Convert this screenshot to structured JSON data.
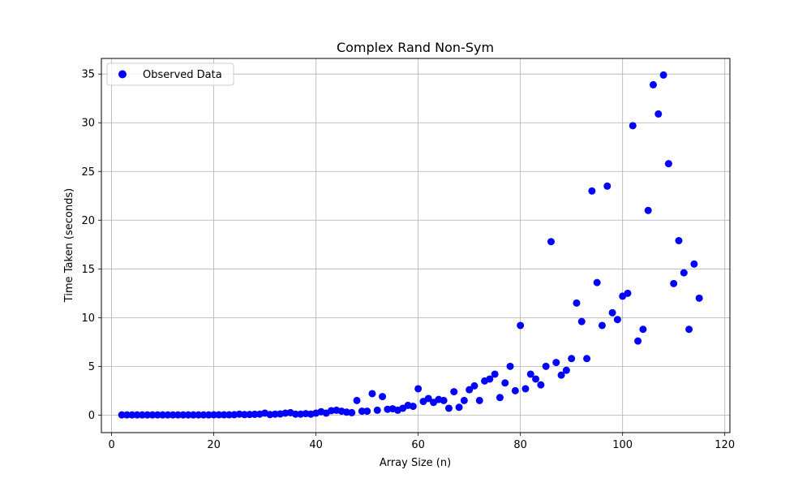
{
  "chart_data": {
    "type": "scatter",
    "title": "Complex Rand Non-Sym",
    "xlabel": "Array Size (n)",
    "ylabel": "Time Taken (seconds)",
    "xlim": [
      -2,
      121
    ],
    "ylim": [
      -1.8,
      36.6
    ],
    "xticks": [
      0,
      20,
      40,
      60,
      80,
      100,
      120
    ],
    "yticks": [
      0,
      5,
      10,
      15,
      20,
      25,
      30,
      35
    ],
    "grid": true,
    "legend_position": "top-left",
    "series": [
      {
        "name": "Observed Data",
        "color": "#0000ff",
        "marker": "circle",
        "x": [
          2,
          3,
          4,
          5,
          6,
          7,
          8,
          9,
          10,
          11,
          12,
          13,
          14,
          15,
          16,
          17,
          18,
          19,
          20,
          21,
          22,
          23,
          24,
          25,
          26,
          27,
          28,
          29,
          30,
          31,
          32,
          33,
          34,
          35,
          36,
          37,
          38,
          39,
          40,
          41,
          42,
          43,
          44,
          45,
          46,
          47,
          48,
          49,
          50,
          51,
          52,
          53,
          54,
          55,
          56,
          57,
          58,
          59,
          60,
          61,
          62,
          63,
          64,
          65,
          66,
          67,
          68,
          69,
          70,
          71,
          72,
          73,
          74,
          75,
          76,
          77,
          78,
          79,
          80,
          81,
          82,
          83,
          84,
          85,
          86,
          87,
          88,
          89,
          90,
          91,
          92,
          93,
          94,
          95,
          96,
          97,
          98,
          99,
          100,
          101,
          102,
          103,
          104,
          105,
          106,
          107,
          108,
          109,
          110,
          111,
          112,
          113,
          114,
          115
        ],
        "y": [
          0.02,
          0.02,
          0.02,
          0.02,
          0.02,
          0.02,
          0.02,
          0.02,
          0.02,
          0.02,
          0.02,
          0.02,
          0.02,
          0.02,
          0.02,
          0.02,
          0.02,
          0.02,
          0.03,
          0.03,
          0.03,
          0.03,
          0.04,
          0.1,
          0.05,
          0.06,
          0.08,
          0.1,
          0.2,
          0.05,
          0.1,
          0.12,
          0.2,
          0.25,
          0.1,
          0.1,
          0.15,
          0.1,
          0.2,
          0.35,
          0.2,
          0.45,
          0.5,
          0.4,
          0.3,
          0.25,
          1.5,
          0.4,
          0.4,
          2.2,
          0.5,
          1.9,
          0.6,
          0.65,
          0.5,
          0.7,
          1.0,
          0.9,
          2.7,
          1.4,
          1.7,
          1.3,
          1.6,
          1.5,
          0.7,
          2.4,
          0.8,
          1.5,
          2.6,
          3.0,
          1.5,
          3.5,
          3.7,
          4.2,
          1.8,
          3.3,
          5.0,
          2.5,
          9.2,
          2.7,
          4.2,
          3.7,
          3.1,
          5.0,
          17.8,
          5.4,
          4.1,
          4.6,
          5.8,
          11.5,
          9.6,
          5.8,
          23.0,
          13.6,
          9.2,
          23.5,
          10.5,
          9.8,
          12.2,
          12.5,
          29.7,
          7.6,
          8.8,
          21.0,
          33.9,
          30.9,
          34.9,
          25.8,
          13.5,
          17.9,
          14.6,
          8.8,
          15.5,
          12.0
        ]
      }
    ]
  }
}
